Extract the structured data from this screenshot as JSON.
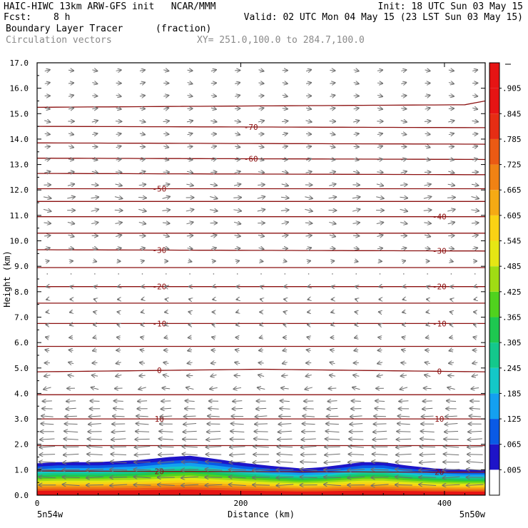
{
  "header": {
    "line1_left": "HAIC-HIWC 13km ARW-GFS init   NCAR/MMM",
    "line1_right": "Init: 18 UTC Sun 03 May 15",
    "fcst_label": "Fcst:",
    "fcst_value": "8 h",
    "valid": "Valid: 02 UTC Mon 04 May 15 (23 LST Sun 03 May 15)",
    "field_name": "Boundary Layer Tracer",
    "field_units": "(fraction)",
    "vector_label": "Circulation vectors",
    "xy_label": "XY= 251.0,100.0 to 284.7,100.0"
  },
  "colors": {
    "contour": "#8b1010",
    "vector": "#6e6e6e"
  },
  "chart_data": {
    "type": "cross-section",
    "ylabel": "Height (km)",
    "xlabel": "Distance (km)",
    "ylim": [
      0,
      17
    ],
    "xlim": [
      0,
      440
    ],
    "y_ticks": [
      "0.0",
      "1.0",
      "2.0",
      "3.0",
      "4.0",
      "5.0",
      "6.0",
      "7.0",
      "8.0",
      "9.0",
      "10.0",
      "11.0",
      "12.0",
      "13.0",
      "14.0",
      "15.0",
      "16.0",
      "17.0"
    ],
    "x_ticks": [
      0,
      200,
      400
    ],
    "x_tick_labels": [
      "0",
      "200",
      "400"
    ],
    "x_end_labels": [
      "5n54w",
      "5n50w"
    ],
    "colorbar": {
      "labels": [
        ".005",
        ".065",
        ".125",
        ".185",
        ".245",
        ".305",
        ".365",
        ".425",
        ".485",
        ".545",
        ".605",
        ".665",
        ".725",
        ".785",
        ".845",
        ".905"
      ],
      "colors": [
        "#ffffff",
        "#1e14c8",
        "#0a5ae6",
        "#14a0f0",
        "#14c8c8",
        "#14c88c",
        "#1ec850",
        "#50d21e",
        "#a0dc14",
        "#e6e614",
        "#fad214",
        "#f5aa14",
        "#f08214",
        "#eb5a14",
        "#e62d14",
        "#e61414",
        "#e61414"
      ]
    },
    "tracer_top_km": [
      [
        0,
        1.25
      ],
      [
        20,
        1.3
      ],
      [
        60,
        1.3
      ],
      [
        100,
        1.38
      ],
      [
        130,
        1.5
      ],
      [
        150,
        1.55
      ],
      [
        170,
        1.45
      ],
      [
        200,
        1.28
      ],
      [
        230,
        1.15
      ],
      [
        260,
        1.05
      ],
      [
        280,
        1.1
      ],
      [
        300,
        1.2
      ],
      [
        320,
        1.3
      ],
      [
        340,
        1.3
      ],
      [
        360,
        1.18
      ],
      [
        390,
        1.05
      ],
      [
        420,
        1.0
      ],
      [
        440,
        1.0
      ]
    ],
    "temperature_contours": [
      {
        "level": "20",
        "heights": [
          [
            0,
            0.95
          ],
          [
            440,
            0.9
          ]
        ],
        "label_x": [
          120,
          395
        ]
      },
      {
        "level": "",
        "heights": [
          [
            0,
            1.95
          ],
          [
            440,
            1.95
          ]
        ],
        "label_x": []
      },
      {
        "level": "10",
        "heights": [
          [
            0,
            3.0
          ],
          [
            440,
            3.0
          ]
        ],
        "label_x": [
          120,
          395
        ]
      },
      {
        "level": "",
        "heights": [
          [
            0,
            3.95
          ],
          [
            440,
            3.95
          ]
        ],
        "label_x": []
      },
      {
        "level": "0",
        "heights": [
          [
            0,
            4.85
          ],
          [
            220,
            4.95
          ],
          [
            440,
            4.85
          ]
        ],
        "label_x": [
          120,
          395
        ]
      },
      {
        "level": "",
        "heights": [
          [
            0,
            5.85
          ],
          [
            440,
            5.85
          ]
        ],
        "label_x": []
      },
      {
        "level": "-10",
        "heights": [
          [
            0,
            6.75
          ],
          [
            440,
            6.75
          ]
        ],
        "label_x": [
          120,
          395
        ]
      },
      {
        "level": "",
        "heights": [
          [
            0,
            7.55
          ],
          [
            440,
            7.55
          ]
        ],
        "label_x": []
      },
      {
        "level": "-20",
        "heights": [
          [
            0,
            8.2
          ],
          [
            440,
            8.2
          ]
        ],
        "label_x": [
          120,
          395
        ]
      },
      {
        "level": "",
        "heights": [
          [
            0,
            8.95
          ],
          [
            440,
            8.95
          ]
        ],
        "label_x": []
      },
      {
        "level": "-30",
        "heights": [
          [
            0,
            9.65
          ],
          [
            440,
            9.6
          ]
        ],
        "label_x": [
          120,
          395
        ]
      },
      {
        "level": "",
        "heights": [
          [
            0,
            10.3
          ],
          [
            440,
            10.3
          ]
        ],
        "label_x": []
      },
      {
        "level": "-40",
        "heights": [
          [
            0,
            10.95
          ],
          [
            440,
            10.95
          ]
        ],
        "label_x": [
          395
        ]
      },
      {
        "level": "",
        "heights": [
          [
            0,
            11.55
          ],
          [
            440,
            11.55
          ]
        ],
        "label_x": []
      },
      {
        "level": "-50",
        "heights": [
          [
            0,
            12.05
          ],
          [
            440,
            12.05
          ]
        ],
        "label_x": [
          120
        ]
      },
      {
        "level": "",
        "heights": [
          [
            0,
            12.65
          ],
          [
            440,
            12.6
          ]
        ],
        "label_x": []
      },
      {
        "level": "-60",
        "heights": [
          [
            0,
            13.25
          ],
          [
            440,
            13.2
          ]
        ],
        "label_x": [
          210
        ]
      },
      {
        "level": "",
        "heights": [
          [
            0,
            13.85
          ],
          [
            440,
            13.8
          ]
        ],
        "label_x": []
      },
      {
        "level": "-70",
        "heights": [
          [
            0,
            14.5
          ],
          [
            440,
            14.45
          ]
        ],
        "label_x": [
          210
        ]
      },
      {
        "level": "",
        "heights": [
          [
            0,
            15.25
          ],
          [
            200,
            15.3
          ],
          [
            420,
            15.35
          ],
          [
            440,
            15.5
          ]
        ],
        "label_x": []
      }
    ],
    "vectors": {
      "columns": 19,
      "levels_km": [
        0.4,
        0.7,
        1.0,
        1.3,
        1.6,
        1.9,
        2.2,
        2.5,
        2.8,
        3.1,
        3.4,
        3.7,
        4.2,
        4.7,
        5.2,
        5.7,
        6.2,
        6.7,
        7.2,
        7.7,
        8.2,
        8.7,
        9.2,
        9.7,
        10.2,
        10.7,
        11.2,
        11.7,
        12.2,
        12.7,
        13.2,
        13.7,
        14.2,
        14.7,
        15.2,
        15.7,
        16.2,
        16.7
      ],
      "u_by_level": [
        -1.0,
        -1.0,
        -1.0,
        -0.95,
        -0.9,
        -0.9,
        -0.85,
        -0.8,
        -0.75,
        -0.7,
        -0.6,
        -0.55,
        -0.45,
        -0.35,
        -0.3,
        -0.25,
        -0.2,
        -0.15,
        -0.15,
        -0.1,
        -0.1,
        -0.05,
        0.2,
        0.3,
        0.35,
        0.4,
        0.45,
        0.45,
        0.4,
        0.35,
        0.3,
        0.3,
        0.3,
        0.35,
        0.3,
        0.3,
        0.3,
        0.3
      ]
    }
  }
}
